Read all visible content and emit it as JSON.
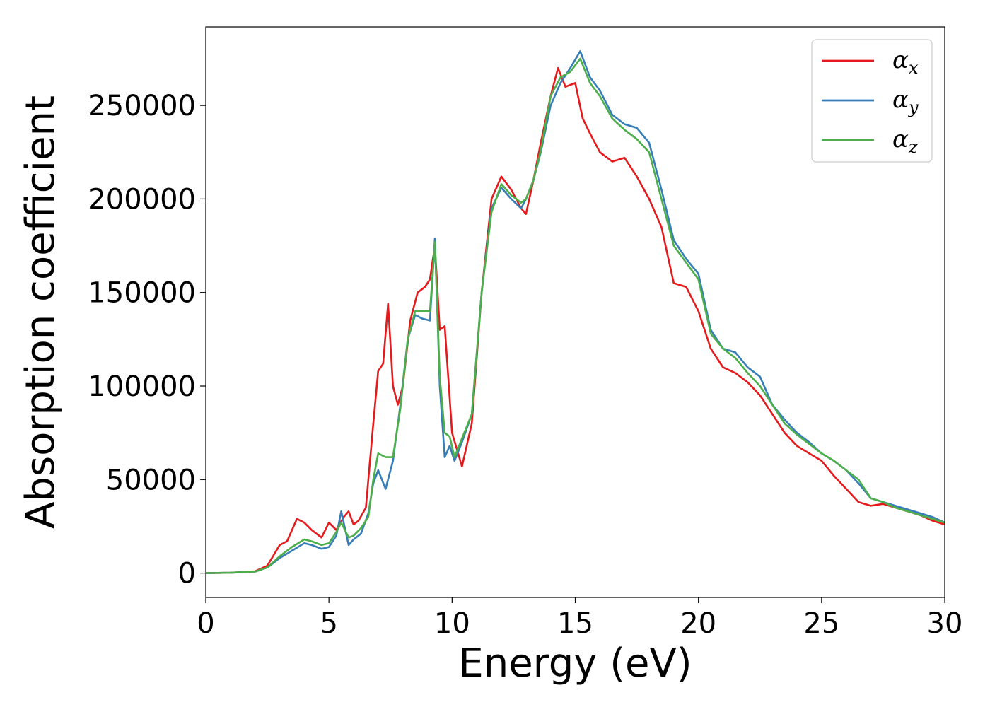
{
  "chart_data": {
    "type": "line",
    "title": "",
    "xlabel": "Energy (eV)",
    "ylabel": "Absorption coefficient",
    "xlim": [
      0,
      30
    ],
    "ylim": [
      -13000,
      292000
    ],
    "xticks": [
      0,
      5,
      10,
      15,
      20,
      25,
      30
    ],
    "xtick_labels": [
      "0",
      "5",
      "10",
      "15",
      "20",
      "25",
      "30"
    ],
    "yticks": [
      0,
      50000,
      100000,
      150000,
      200000,
      250000
    ],
    "ytick_labels": [
      "0",
      "50000",
      "100000",
      "150000",
      "200000",
      "250000"
    ],
    "grid": false,
    "legend_position": "top-right",
    "series": [
      {
        "name": "α",
        "subscript": "x",
        "color": "#e41a1c",
        "x": [
          0,
          1,
          2,
          2.5,
          3,
          3.3,
          3.7,
          4,
          4.3,
          4.7,
          5,
          5.3,
          5.6,
          5.8,
          6,
          6.2,
          6.5,
          6.8,
          7,
          7.2,
          7.4,
          7.6,
          7.8,
          8,
          8.3,
          8.6,
          8.9,
          9.1,
          9.3,
          9.5,
          9.7,
          10,
          10.4,
          10.8,
          11.2,
          11.6,
          12,
          12.4,
          12.8,
          13,
          13.3,
          13.6,
          14,
          14.3,
          14.6,
          15,
          15.3,
          15.6,
          16,
          16.5,
          17,
          17.5,
          18,
          18.5,
          19,
          19.5,
          20,
          20.5,
          21,
          21.5,
          22,
          22.5,
          23,
          23.5,
          24,
          24.5,
          25,
          25.5,
          26,
          26.5,
          27,
          27.5,
          28,
          28.5,
          29,
          29.5,
          30
        ],
        "y": [
          0,
          200,
          1000,
          4000,
          15000,
          17000,
          29000,
          27000,
          23000,
          19000,
          27000,
          23000,
          30000,
          33000,
          26000,
          28000,
          35000,
          80000,
          108000,
          112000,
          144000,
          100000,
          90000,
          100000,
          135000,
          150000,
          153000,
          157000,
          175000,
          130000,
          132000,
          75000,
          57000,
          80000,
          150000,
          200000,
          212000,
          205000,
          195000,
          192000,
          210000,
          230000,
          255000,
          270000,
          260000,
          262000,
          243000,
          235000,
          225000,
          220000,
          222000,
          212000,
          200000,
          185000,
          155000,
          153000,
          140000,
          120000,
          110000,
          107000,
          102000,
          95000,
          85000,
          75000,
          68000,
          64000,
          60000,
          52000,
          45000,
          38000,
          36000,
          37000,
          35000,
          33000,
          31000,
          28000,
          26000
        ]
      },
      {
        "name": "α",
        "subscript": "y",
        "color": "#377eb8",
        "x": [
          0,
          1,
          2,
          2.5,
          3,
          3.5,
          4,
          4.3,
          4.7,
          5,
          5.3,
          5.5,
          5.8,
          6,
          6.3,
          6.6,
          6.8,
          7,
          7.3,
          7.6,
          7.9,
          8.2,
          8.5,
          8.8,
          9.1,
          9.3,
          9.5,
          9.7,
          9.9,
          10.1,
          10.4,
          10.8,
          11.2,
          11.6,
          12,
          12.4,
          12.8,
          13,
          13.3,
          13.6,
          14,
          14.4,
          14.8,
          15.2,
          15.6,
          16,
          16.5,
          17,
          17.5,
          18,
          18.5,
          19,
          19.5,
          20,
          20.5,
          21,
          21.5,
          22,
          22.5,
          23,
          23.5,
          24,
          24.5,
          25,
          25.5,
          26,
          26.5,
          27,
          27.5,
          28,
          28.5,
          29,
          29.5,
          30
        ],
        "y": [
          0,
          200,
          800,
          3000,
          8000,
          12000,
          16000,
          15000,
          13000,
          14000,
          20000,
          33000,
          15000,
          18000,
          21000,
          32000,
          48000,
          55000,
          45000,
          60000,
          90000,
          125000,
          138000,
          136000,
          135000,
          179000,
          100000,
          62000,
          68000,
          60000,
          70000,
          85000,
          150000,
          195000,
          206000,
          200000,
          195000,
          200000,
          210000,
          225000,
          250000,
          262000,
          270000,
          279000,
          265000,
          258000,
          245000,
          240000,
          238000,
          230000,
          205000,
          178000,
          168000,
          160000,
          130000,
          120000,
          118000,
          110000,
          105000,
          90000,
          82000,
          75000,
          70000,
          64000,
          60000,
          55000,
          48000,
          40000,
          38000,
          36000,
          34000,
          32000,
          30000,
          27000
        ]
      },
      {
        "name": "α",
        "subscript": "z",
        "color": "#4daf4a",
        "x": [
          0,
          1,
          2,
          2.5,
          3,
          3.5,
          4,
          4.3,
          4.7,
          5,
          5.3,
          5.5,
          5.8,
          6,
          6.3,
          6.6,
          6.8,
          7,
          7.3,
          7.6,
          7.9,
          8.2,
          8.5,
          8.8,
          9.1,
          9.3,
          9.5,
          9.7,
          9.9,
          10.1,
          10.4,
          10.8,
          11.2,
          11.6,
          12,
          12.4,
          12.8,
          13,
          13.3,
          13.6,
          14,
          14.4,
          14.8,
          15.2,
          15.6,
          16,
          16.5,
          17,
          17.5,
          18,
          18.5,
          19,
          19.5,
          20,
          20.5,
          21,
          21.5,
          22,
          22.5,
          23,
          23.5,
          24,
          24.5,
          25,
          25.5,
          26,
          26.5,
          27,
          27.5,
          28,
          28.5,
          29,
          29.5,
          30
        ],
        "y": [
          0,
          200,
          800,
          3000,
          9000,
          14000,
          18000,
          17000,
          15000,
          16000,
          22000,
          27000,
          19000,
          20000,
          24000,
          30000,
          50000,
          64000,
          62000,
          62000,
          88000,
          125000,
          140000,
          140000,
          140000,
          177000,
          105000,
          75000,
          73000,
          62000,
          72000,
          85000,
          150000,
          193000,
          208000,
          202000,
          198000,
          200000,
          210000,
          226000,
          255000,
          265000,
          268000,
          275000,
          262000,
          255000,
          243000,
          237000,
          232000,
          225000,
          200000,
          175000,
          166000,
          157000,
          128000,
          120000,
          115000,
          107000,
          100000,
          90000,
          80000,
          74000,
          69000,
          64000,
          60000,
          55000,
          50000,
          40000,
          38000,
          35000,
          33000,
          31000,
          29000,
          27000
        ]
      }
    ]
  }
}
